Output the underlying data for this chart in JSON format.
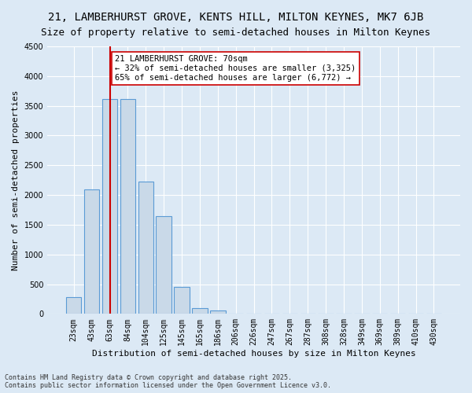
{
  "title_line1": "21, LAMBERHURST GROVE, KENTS HILL, MILTON KEYNES, MK7 6JB",
  "title_line2": "Size of property relative to semi-detached houses in Milton Keynes",
  "xlabel": "Distribution of semi-detached houses by size in Milton Keynes",
  "ylabel": "Number of semi-detached properties",
  "footnote": "Contains HM Land Registry data © Crown copyright and database right 2025.\nContains public sector information licensed under the Open Government Licence v3.0.",
  "bar_labels": [
    "23sqm",
    "43sqm",
    "63sqm",
    "84sqm",
    "104sqm",
    "125sqm",
    "145sqm",
    "165sqm",
    "186sqm",
    "206sqm",
    "226sqm",
    "247sqm",
    "267sqm",
    "287sqm",
    "308sqm",
    "328sqm",
    "349sqm",
    "369sqm",
    "389sqm",
    "410sqm",
    "430sqm"
  ],
  "bar_values": [
    280,
    2100,
    3620,
    3620,
    2230,
    1640,
    450,
    100,
    55,
    0,
    0,
    0,
    0,
    0,
    0,
    0,
    0,
    0,
    0,
    0,
    0
  ],
  "bar_color": "#c9d9e8",
  "bar_edgecolor": "#5b9bd5",
  "property_size": 70,
  "property_bin_index": 2,
  "vline_color": "#cc0000",
  "annotation_text": "21 LAMBERHURST GROVE: 70sqm\n← 32% of semi-detached houses are smaller (3,325)\n65% of semi-detached houses are larger (6,772) →",
  "annotation_boxcolor": "white",
  "annotation_edgecolor": "#cc0000",
  "ylim": [
    0,
    4500
  ],
  "yticks": [
    0,
    500,
    1000,
    1500,
    2000,
    2500,
    3000,
    3500,
    4000,
    4500
  ],
  "background_color": "#dce9f5",
  "grid_color": "white",
  "title_fontsize": 10,
  "subtitle_fontsize": 9,
  "axis_label_fontsize": 8,
  "tick_fontsize": 7,
  "annotation_fontsize": 7.5
}
